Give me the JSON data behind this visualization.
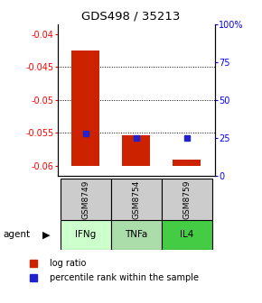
{
  "title": "GDS498 / 35213",
  "samples": [
    "GSM8749",
    "GSM8754",
    "GSM8759"
  ],
  "agents": [
    "IFNg",
    "TNFa",
    "IL4"
  ],
  "log_ratios": [
    -0.0425,
    -0.0553,
    -0.0591
  ],
  "percentile_ranks": [
    0.278,
    0.248,
    0.248
  ],
  "bar_bottom": -0.06,
  "ylim_left": [
    -0.0615,
    -0.0385
  ],
  "ylim_right": [
    0,
    1.0
  ],
  "yticks_left": [
    -0.06,
    -0.055,
    -0.05,
    -0.045,
    -0.04
  ],
  "ytick_labels_left": [
    "-0.06",
    "-0.055",
    "-0.05",
    "-0.045",
    "-0.04"
  ],
  "yticks_right": [
    0,
    0.25,
    0.5,
    0.75,
    1.0
  ],
  "ytick_labels_right": [
    "0",
    "25",
    "50",
    "75",
    "100%"
  ],
  "bar_color": "#cc2200",
  "marker_color": "#2222cc",
  "agent_colors": [
    "#ccffcc",
    "#aaddaa",
    "#44cc44"
  ],
  "sample_box_color": "#cccccc",
  "legend_items": [
    "log ratio",
    "percentile rank within the sample"
  ],
  "grid_ticks": [
    -0.045,
    -0.05,
    -0.055
  ],
  "bar_width": 0.55
}
